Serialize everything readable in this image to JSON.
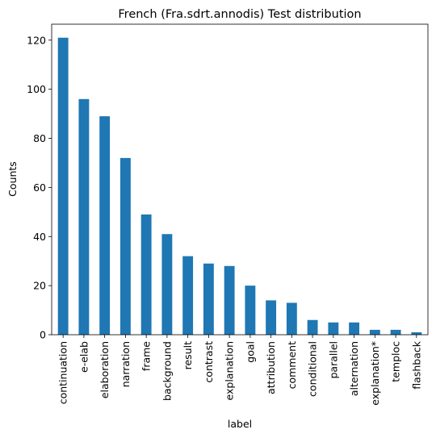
{
  "chart_data": {
    "type": "bar",
    "title": "French (Fra.sdrt.annodis) Test distribution",
    "xlabel": "label",
    "ylabel": "Counts",
    "ylim": [
      0,
      126.5
    ],
    "yticks": [
      0,
      20,
      40,
      60,
      80,
      100,
      120
    ],
    "grid": false,
    "legend": "none",
    "bar_color": "#1f77b4",
    "categories": [
      "continuation",
      "e-elab",
      "elaboration",
      "narration",
      "frame",
      "background",
      "result",
      "contrast",
      "explanation",
      "goal",
      "attribution",
      "comment",
      "conditional",
      "parallel",
      "alternation",
      "explanation*",
      "temploc",
      "flashback"
    ],
    "values": [
      121,
      96,
      89,
      72,
      49,
      41,
      32,
      29,
      28,
      20,
      14,
      13,
      6,
      5,
      5,
      2,
      2,
      1
    ]
  }
}
